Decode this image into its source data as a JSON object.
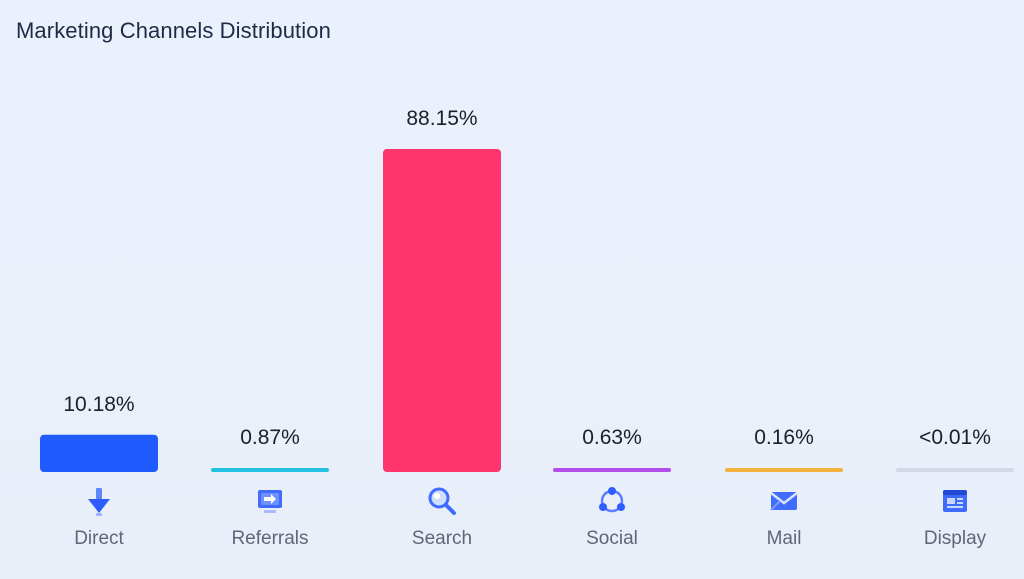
{
  "header": {
    "title": "Marketing Channels Distribution"
  },
  "chart_data": {
    "type": "bar",
    "title": "Marketing Channels Distribution",
    "xlabel": "",
    "ylabel": "",
    "ylim": [
      0,
      88.15
    ],
    "grid": false,
    "categories": [
      "Direct",
      "Referrals",
      "Search",
      "Social",
      "Mail",
      "Display"
    ],
    "values": [
      10.18,
      0.87,
      88.15,
      0.63,
      0.16,
      0.01
    ],
    "value_labels": [
      "10.18%",
      "0.87%",
      "88.15%",
      "0.63%",
      "0.16%",
      "<0.01%"
    ],
    "colors": [
      "#1f5bff",
      "#22c1e4",
      "#ff3570",
      "#b24dea",
      "#f3b23d",
      "#d3d9e6"
    ],
    "icons": [
      "arrow-down-icon",
      "referral-screen-icon",
      "search-magnifier-icon",
      "social-share-icon",
      "mail-envelope-icon",
      "display-browser-icon"
    ]
  }
}
